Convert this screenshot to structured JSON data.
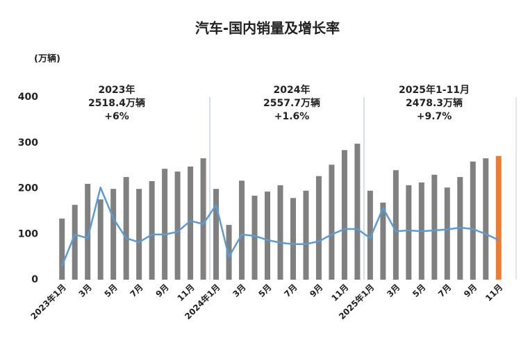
{
  "chart_data": {
    "type": "bar",
    "title": "汽车-国内销量及增长率",
    "y_label": "(万辆)",
    "categories": [
      "2023年1月",
      null,
      "3月",
      null,
      "5月",
      null,
      "7月",
      null,
      "9月",
      null,
      "11月",
      null,
      "2024年1月",
      null,
      "3月",
      null,
      "5月",
      null,
      "7月",
      null,
      "9月",
      null,
      "11月",
      null,
      "2025年1月",
      null,
      "3月",
      null,
      "5月",
      null,
      "7月",
      null,
      "9月",
      null,
      "11月"
    ],
    "series": [
      {
        "type": "bar",
        "values": [
          134,
          164,
          210,
          176,
          199,
          225,
          199,
          216,
          243,
          237,
          248,
          266,
          199,
          120,
          217,
          184,
          193,
          207,
          179,
          195,
          227,
          252,
          284,
          298,
          195,
          169,
          240,
          207,
          213,
          230,
          202,
          225,
          259,
          266,
          271
        ],
        "colors": [
          "#808080",
          "#808080",
          "#808080",
          "#808080",
          "#808080",
          "#808080",
          "#808080",
          "#808080",
          "#808080",
          "#808080",
          "#808080",
          "#808080",
          "#808080",
          "#808080",
          "#808080",
          "#808080",
          "#808080",
          "#808080",
          "#808080",
          "#808080",
          "#808080",
          "#808080",
          "#808080",
          "#808080",
          "#808080",
          "#808080",
          "#808080",
          "#808080",
          "#808080",
          "#808080",
          "#808080",
          "#808080",
          "#808080",
          "#808080",
          "#ed7d31"
        ]
      },
      {
        "type": "line",
        "color": "#5b9bd5",
        "values": [
          30,
          99,
          91,
          202,
          134,
          91,
          82,
          99,
          99,
          105,
          129,
          122,
          164,
          50,
          99,
          96,
          87,
          81,
          78,
          78,
          84,
          99,
          111,
          111,
          91,
          157,
          106,
          108,
          106,
          108,
          110,
          114,
          111,
          100,
          87
        ]
      }
    ],
    "annotations": [
      [
        "2023年",
        "2518.4万辆",
        "+6%"
      ],
      [
        "2024年",
        "2557.7万辆",
        "+1.6%"
      ],
      [
        "2025年1-11月",
        "2478.3万辆",
        "+9.7%"
      ]
    ],
    "ylim": [
      0,
      400
    ],
    "yticks": [
      0,
      100,
      200,
      300,
      400
    ],
    "grid": false
  }
}
